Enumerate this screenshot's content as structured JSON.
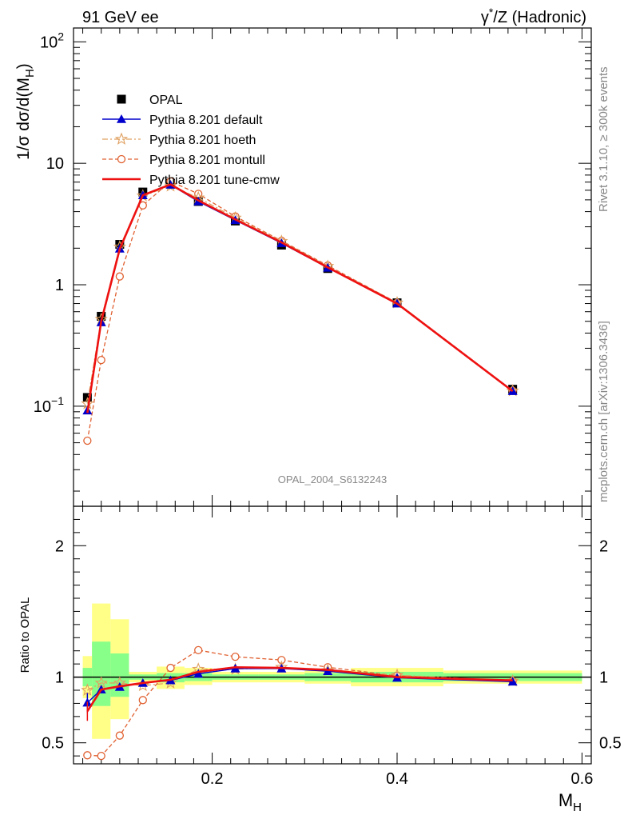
{
  "header": {
    "left_title": "91 GeV ee",
    "right_title": "γ*/Z (Hadronic)"
  },
  "side_labels": {
    "rivet": "Rivet 3.1.10, ≥ 300k events",
    "mcplots": "mcplots.cern.ch [arXiv:1306.3436]"
  },
  "watermark": "OPAL_2004_S6132243",
  "chart_data": {
    "type": "line",
    "xlabel": "M_H",
    "x_ticks": [
      "0.2",
      "0.4",
      "0.6"
    ],
    "xlim": [
      0.05,
      0.61
    ],
    "upper": {
      "ylabel": "1/σ dσ/d(M_H)",
      "yscale": "log",
      "ylim": [
        0.015,
        130
      ],
      "y_ticks": [
        "10^-1",
        "1",
        "10",
        "10^2"
      ]
    },
    "lower": {
      "ylabel": "Ratio to OPAL",
      "ylim": [
        0.34,
        2.3
      ],
      "y_ticks": [
        "0.5",
        "1",
        "2"
      ]
    },
    "x": [
      0.065,
      0.08,
      0.1,
      0.125,
      0.155,
      0.185,
      0.225,
      0.275,
      0.325,
      0.4,
      0.525
    ],
    "bin_edges": [
      0.06,
      0.07,
      0.09,
      0.11,
      0.14,
      0.17,
      0.2,
      0.25,
      0.3,
      0.35,
      0.45,
      0.6
    ],
    "band_yellow": [
      [
        0.84,
        1.16
      ],
      [
        0.53,
        1.56
      ],
      [
        0.68,
        1.44
      ],
      [
        0.96,
        1.04
      ],
      [
        0.91,
        1.08
      ],
      [
        0.94,
        1.07
      ],
      [
        0.96,
        1.04
      ],
      [
        0.96,
        1.04
      ],
      [
        0.95,
        1.05
      ],
      [
        0.93,
        1.07
      ],
      [
        0.95,
        1.05
      ]
    ],
    "band_green": [
      [
        0.93,
        1.07
      ],
      [
        0.78,
        1.27
      ],
      [
        0.85,
        1.18
      ],
      [
        0.98,
        1.02
      ],
      [
        0.96,
        1.03
      ],
      [
        0.97,
        1.03
      ],
      [
        0.98,
        1.02
      ],
      [
        0.98,
        1.02
      ],
      [
        0.97,
        1.03
      ],
      [
        0.96,
        1.04
      ],
      [
        0.97,
        1.03
      ]
    ],
    "legend": {
      "position": "upper-left",
      "entries": [
        "OPAL",
        "Pythia 8.201 default",
        "Pythia 8.201 hoeth",
        "Pythia 8.201 montull",
        "Pythia 8.201 tune-cmw"
      ]
    },
    "series": [
      {
        "name": "OPAL",
        "color": "#000000",
        "marker": "square",
        "values": [
          0.118,
          0.55,
          2.15,
          5.8,
          6.85,
          4.85,
          3.35,
          2.12,
          1.36,
          0.71,
          0.138
        ]
      },
      {
        "name": "Pythia 8.201 default",
        "color": "#0000cc",
        "marker": "triangle",
        "line": "solid",
        "values": [
          0.092,
          0.49,
          1.98,
          5.45,
          6.65,
          4.85,
          3.4,
          2.2,
          1.38,
          0.7,
          0.133
        ],
        "ratio": [
          0.805,
          0.905,
          0.925,
          0.955,
          0.975,
          1.025,
          1.065,
          1.065,
          1.045,
          0.995,
          0.965
        ]
      },
      {
        "name": "Pythia 8.201 hoeth",
        "color": "#e0a060",
        "marker": "star",
        "line": "dashdot",
        "values": [
          0.105,
          0.52,
          2.05,
          5.4,
          6.5,
          5.2,
          3.55,
          2.28,
          1.42,
          0.71,
          0.134
        ],
        "ratio": [
          0.9,
          0.955,
          0.955,
          0.935,
          0.955,
          1.06,
          1.06,
          1.075,
          1.05,
          1.015,
          0.97
        ]
      },
      {
        "name": "Pythia 8.201 montull",
        "color": "#e06030",
        "marker": "circle",
        "line": "dashed",
        "values": [
          0.052,
          0.24,
          1.17,
          4.5,
          7.1,
          5.6,
          3.65,
          2.3,
          1.44,
          0.71,
          0.134
        ],
        "ratio": [
          0.405,
          0.4,
          0.555,
          0.825,
          1.07,
          1.205,
          1.155,
          1.13,
          1.075,
          1.01,
          0.97
        ]
      },
      {
        "name": "Pythia 8.201 tune-cmw",
        "color": "#ee1111",
        "marker": "none",
        "line": "solid-thick",
        "values": [
          0.088,
          0.5,
          1.97,
          5.45,
          6.7,
          4.95,
          3.45,
          2.23,
          1.39,
          0.7,
          0.133
        ],
        "ratio": [
          0.74,
          0.905,
          0.93,
          0.955,
          0.98,
          1.04,
          1.075,
          1.07,
          1.055,
          1.0,
          0.975
        ]
      }
    ]
  }
}
